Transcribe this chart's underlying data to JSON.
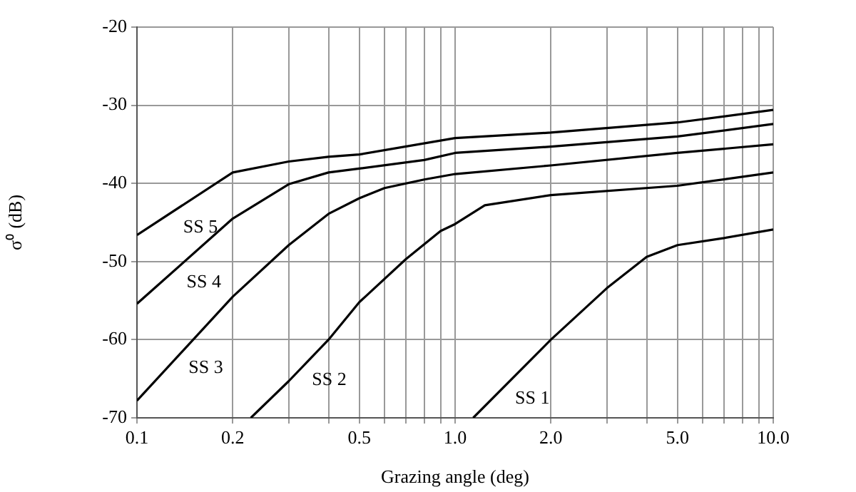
{
  "chart_data": {
    "type": "line",
    "xlabel": "Grazing angle (deg)",
    "ylabel": "σ⁰ (dB)",
    "log": "x",
    "grid": true,
    "legend": false,
    "marker": "none",
    "line_style": "solid",
    "xlim": [
      0.1,
      10
    ],
    "ylim": [
      -70,
      -20
    ],
    "xticks": [
      0.1,
      0.2,
      {
        "value": 0.3,
        "label": null
      },
      {
        "value": 0.4,
        "label": null
      },
      0.5,
      {
        "value": 0.6,
        "label": null
      },
      {
        "value": 0.7,
        "label": null
      },
      {
        "value": 0.8,
        "label": null
      },
      {
        "value": 0.9,
        "label": null
      },
      {
        "value": 1,
        "label": "1.0"
      },
      {
        "value": 2,
        "label": "2.0"
      },
      {
        "value": 3,
        "label": null
      },
      {
        "value": 4,
        "label": null
      },
      {
        "value": 5,
        "label": "5.0"
      },
      {
        "value": 6,
        "label": null
      },
      {
        "value": 7,
        "label": null
      },
      {
        "value": 8,
        "label": null
      },
      {
        "value": 9,
        "label": null
      },
      {
        "value": 10,
        "label": "10.0"
      }
    ],
    "yticks": [
      -70,
      -60,
      -50,
      -40,
      -30,
      -20
    ],
    "series": [
      {
        "name": "SS 5",
        "color": "#000000",
        "x": [
          0.1,
          0.2,
          0.3,
          0.4,
          0.5,
          1,
          2,
          5,
          10
        ],
        "values": [
          -46.6,
          -38.6,
          -37.2,
          -36.6,
          -36.3,
          -34.2,
          -33.5,
          -32.2,
          -30.6
        ]
      },
      {
        "name": "SS 4",
        "color": "#000000",
        "x": [
          0.1,
          0.2,
          0.3,
          0.4,
          0.5,
          0.8,
          1,
          2,
          5,
          10
        ],
        "values": [
          -55.4,
          -44.5,
          -40.1,
          -38.6,
          -38.1,
          -37,
          -36.1,
          -35.3,
          -34,
          -32.4
        ]
      },
      {
        "name": "SS 3",
        "color": "#000000",
        "x": [
          0.1,
          0.2,
          0.3,
          0.4,
          0.5,
          0.6,
          0.8,
          1,
          2,
          5,
          10
        ],
        "values": [
          -67.8,
          -54.5,
          -47.9,
          -43.9,
          -41.9,
          -40.6,
          -39.5,
          -38.8,
          -37.7,
          -36.1,
          -35
        ]
      },
      {
        "name": "SS 2",
        "color": "#000000",
        "x": [
          0.228,
          0.3,
          0.4,
          0.5,
          0.7,
          0.9,
          1,
          1.24,
          2,
          5,
          10
        ],
        "values": [
          -70,
          -65.3,
          -60,
          -55.2,
          -49.7,
          -46.1,
          -45.2,
          -42.8,
          -41.5,
          -40.3,
          -38.6
        ]
      },
      {
        "name": "SS 1",
        "color": "#000000",
        "x": [
          1.14,
          2,
          3,
          4,
          5,
          7,
          10
        ],
        "values": [
          -70,
          -60,
          -53.4,
          -49.4,
          -47.9,
          -47,
          -45.9
        ]
      }
    ]
  }
}
